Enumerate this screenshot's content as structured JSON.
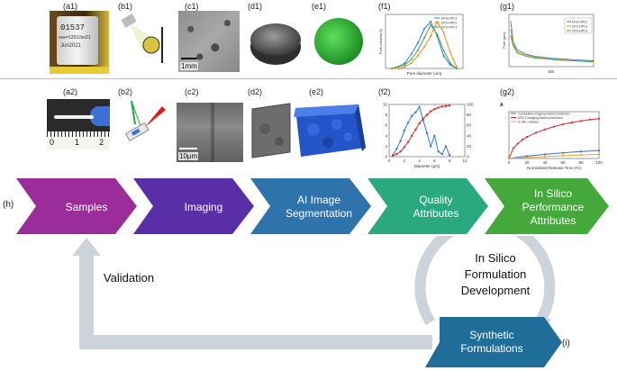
{
  "labels": {
    "a1": "(a1)",
    "b1": "(b1)",
    "c1": "(c1)",
    "d1": "(d1)",
    "e1": "(e1)",
    "f1": "(f1)",
    "g1": "(g1)",
    "a2": "(a2)",
    "b2": "(b2)",
    "c2": "(c2)",
    "d2": "(d2)",
    "e2": "(e2)",
    "f2": "(f2)",
    "g2": "(g2)",
    "h": "(h)",
    "i": "(i)"
  },
  "photo_text": {
    "a1_lines": [
      "01537",
      "ose=1333Jun21",
      "Jun2021"
    ],
    "c1_scale": "1mm",
    "c2_scale": "10μm",
    "ruler_nums": [
      "0",
      "1",
      "2"
    ]
  },
  "flow": {
    "samples": "Samples",
    "imaging": "Imaging",
    "ai_line1": "AI Image",
    "ai_line2": "Segmentation",
    "qa_line1": "Quality",
    "qa_line2": "Attributes",
    "isp_line1": "In Silico",
    "isp_line2": "Performance",
    "isp_line3": "Attributes",
    "synth_line1": "Synthetic",
    "synth_line2": "Formulations"
  },
  "cycle": {
    "validation": "Validation",
    "isf_line1": "In Silico",
    "isf_line2": "Formulation",
    "isf_line3": "Development"
  },
  "colors": {
    "samples": "#9b2d9b",
    "imaging": "#5a2ea6",
    "ai": "#2f73ad",
    "qa": "#2aa880",
    "isp": "#45a83a",
    "synth": "#1f6d99",
    "arrow": "#ccd3da"
  },
  "chart_data": [
    {
      "id": "f1",
      "type": "line",
      "xlabel": "Pore diameter (um)",
      "ylabel": "Pore volume(%)",
      "xlim": [
        0,
        60
      ],
      "ylim": [
        0,
        30
      ],
      "series": [
        {
          "name": "DFS-HPC1",
          "color": "#2b7bd1",
          "x": [
            5,
            10,
            15,
            20,
            25,
            30,
            35,
            40,
            45,
            50,
            55
          ],
          "y": [
            0,
            1,
            3,
            8,
            14,
            22,
            26,
            18,
            7,
            2,
            0
          ]
        },
        {
          "name": "DFS-HPC2",
          "color": "#f08a1d",
          "x": [
            5,
            10,
            15,
            20,
            25,
            30,
            35,
            40,
            45,
            50,
            55
          ],
          "y": [
            0,
            0,
            1,
            3,
            7,
            12,
            18,
            26,
            20,
            9,
            1
          ]
        },
        {
          "name": "DFS-HPC3",
          "color": "#3fa845",
          "x": [
            5,
            10,
            15,
            20,
            25,
            30,
            35,
            40,
            45,
            50,
            55
          ],
          "y": [
            0,
            1,
            2,
            5,
            10,
            17,
            24,
            19,
            10,
            3,
            0
          ]
        }
      ]
    },
    {
      "id": "g1",
      "type": "line",
      "xlabel": "Bin",
      "ylabel": "Pore (μm)",
      "xlim": [
        0,
        1
      ],
      "ylim": [
        0,
        25
      ],
      "series": [
        {
          "name": "DFS-HPC1",
          "color": "#2b7bd1",
          "x": [
            0.02,
            0.05,
            0.1,
            0.2,
            0.3,
            0.4,
            0.5,
            0.6,
            0.7,
            0.8,
            0.9,
            1.0
          ],
          "y": [
            22,
            12,
            8,
            6,
            5,
            4.5,
            4,
            3.8,
            3.5,
            3.2,
            3,
            2.8
          ]
        },
        {
          "name": "DFS-HPC2",
          "color": "#f08a1d",
          "x": [
            0.02,
            0.05,
            0.1,
            0.2,
            0.3,
            0.4,
            0.5,
            0.6,
            0.7,
            0.8,
            0.9,
            1.0
          ],
          "y": [
            18,
            11,
            7,
            5.5,
            4.6,
            4,
            3.6,
            3.3,
            3,
            2.8,
            2.6,
            2.4
          ]
        },
        {
          "name": "DFS-HPC3",
          "color": "#3fa845",
          "x": [
            0.02,
            0.05,
            0.1,
            0.2,
            0.3,
            0.4,
            0.5,
            0.6,
            0.7,
            0.8,
            0.9,
            1.0
          ],
          "y": [
            15,
            10,
            6.5,
            5,
            4.2,
            3.8,
            3.4,
            3.1,
            2.9,
            2.7,
            2.5,
            2.3
          ]
        }
      ]
    },
    {
      "id": "f2",
      "type": "line",
      "xlabel": "Diameter (μm)",
      "xlim": [
        0,
        10
      ],
      "ylim": [
        0,
        10
      ],
      "y2lim": [
        0,
        100
      ],
      "xticks": [
        0,
        2,
        4,
        6,
        8,
        10
      ],
      "yticks": [
        0,
        2,
        4,
        6,
        8,
        10
      ],
      "y2ticks": [
        0,
        20,
        40,
        60,
        80,
        100
      ],
      "series": [
        {
          "color": "#2b7bd1",
          "axis": "left",
          "x": [
            0.5,
            1,
            1.5,
            2,
            2.5,
            3,
            3.5,
            4,
            4.5,
            5,
            5.5,
            6,
            6.5,
            7,
            7.5,
            8
          ],
          "y": [
            0.3,
            1.5,
            3,
            5,
            6.5,
            7.8,
            8.5,
            9.5,
            7,
            4.5,
            2,
            4,
            1,
            0.5,
            2,
            0.3
          ]
        },
        {
          "color": "#d62b2b",
          "axis": "right",
          "x": [
            0.5,
            1,
            1.5,
            2,
            2.5,
            3,
            3.5,
            4,
            4.5,
            5,
            5.5,
            6,
            6.5,
            7,
            7.5,
            8
          ],
          "y": [
            2,
            5,
            10,
            18,
            28,
            40,
            52,
            64,
            73,
            80,
            87,
            91,
            94,
            96,
            97,
            98
          ]
        }
      ]
    },
    {
      "id": "g2",
      "type": "line",
      "panel_letter": "A",
      "xlabel": "Normalized Release Time (%)",
      "xlim": [
        0,
        100
      ],
      "ylim": [
        0,
        100
      ],
      "xticks": [
        0,
        20,
        40,
        60,
        80,
        100
      ],
      "legend": [
        "Cumulative imaging-based prediction",
        "XRCT imaging-based prediction",
        "In vitro release"
      ],
      "series": [
        {
          "name": "Cumulative imaging-based prediction",
          "color": "#3a6fc4",
          "x": [
            0,
            20,
            40,
            60,
            80,
            100
          ],
          "y": [
            0,
            5,
            9,
            12,
            15,
            17
          ]
        },
        {
          "name": "XRCT imaging-based prediction",
          "color": "#d62b2b",
          "x": [
            0,
            5,
            10,
            15,
            20,
            30,
            40,
            50,
            60,
            70,
            80,
            90,
            100
          ],
          "y": [
            0,
            22,
            32,
            40,
            46,
            55,
            62,
            68,
            73,
            77,
            80,
            83,
            85
          ]
        },
        {
          "name": "In vitro release",
          "color": "#f0a030",
          "x": [
            0,
            20,
            40,
            60,
            80,
            100
          ],
          "y": [
            0,
            2,
            4,
            6,
            7.5,
            9
          ]
        }
      ]
    }
  ]
}
